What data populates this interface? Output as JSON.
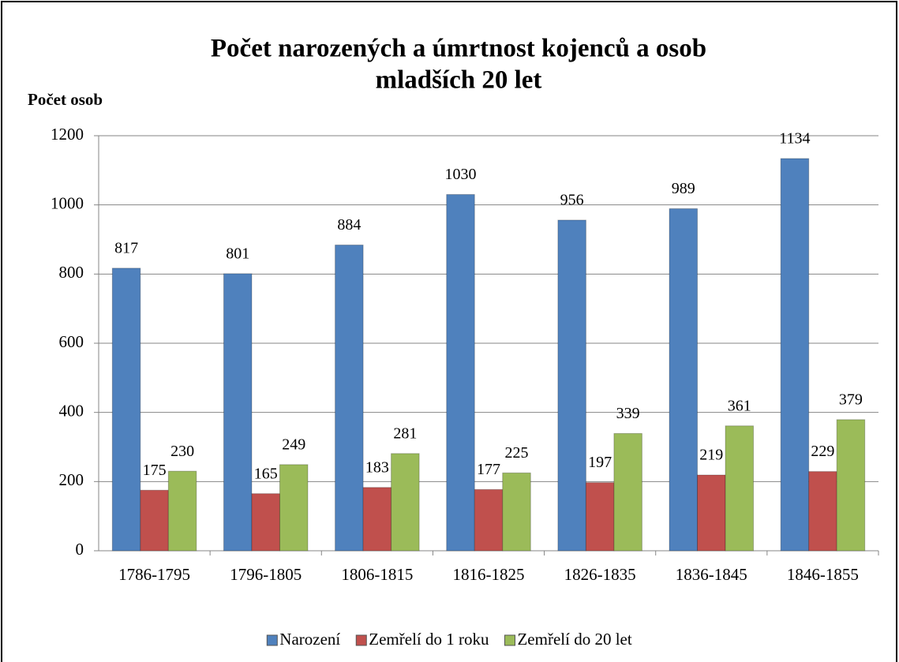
{
  "chart_data": {
    "type": "bar",
    "title": [
      "Počet narozených a úmrtnost kojenců a osob",
      "mladších 20 let"
    ],
    "ylabel": "Počet osob",
    "categories": [
      "1786-1795",
      "1796-1805",
      "1806-1815",
      "1816-1825",
      "1826-1835",
      "1836-1845",
      "1846-1855"
    ],
    "series": [
      {
        "name": "Narození",
        "color": "#4f81bd",
        "values": [
          817,
          801,
          884,
          1030,
          956,
          989,
          1134
        ]
      },
      {
        "name": "Zemřelí do 1 roku",
        "color": "#c0504d",
        "values": [
          175,
          165,
          183,
          177,
          197,
          219,
          229
        ]
      },
      {
        "name": "Zemřelí do 20 let",
        "color": "#9bbb59",
        "values": [
          230,
          249,
          281,
          225,
          339,
          361,
          379
        ]
      }
    ],
    "ylim": [
      0,
      1200
    ],
    "yticks": [
      0,
      200,
      400,
      600,
      800,
      1000,
      1200
    ],
    "grid": true,
    "legend": "bottom"
  }
}
